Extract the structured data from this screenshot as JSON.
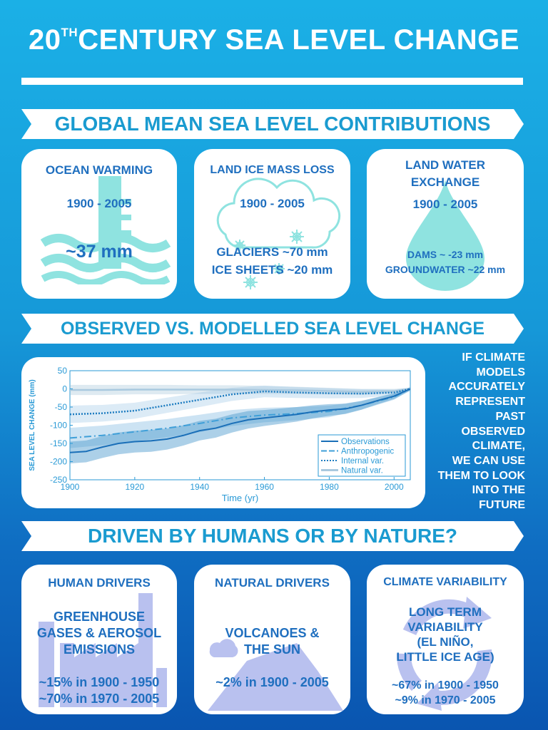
{
  "header": {
    "title_prefix": "20",
    "title_sup": "TH",
    "title_main": "CENTURY SEA LEVEL CHANGE"
  },
  "sections": {
    "contributions": "GLOBAL MEAN SEA LEVEL CONTRIBUTIONS",
    "observed": "OBSERVED VS. MODELLED SEA LEVEL CHANGE",
    "drivers": "DRIVEN BY HUMANS OR BY NATURE?"
  },
  "cards_top": {
    "ocean": {
      "title": "OCEAN WARMING",
      "period": "1900 - 2005",
      "value": "~37 mm"
    },
    "land_ice": {
      "title": "LAND ICE MASS LOSS",
      "period": "1900 - 2005",
      "line1": "GLACIERS ~70 mm",
      "line2": "ICE SHEETS ~20 mm"
    },
    "land_water": {
      "title_line1": "LAND WATER",
      "title_line2": "EXCHANGE",
      "period": "1900 - 2005",
      "line1": "DAMS ~ -23 mm",
      "line2": "GROUNDWATER ~22 mm"
    }
  },
  "side_text": [
    "IF CLIMATE",
    "MODELS",
    "ACCURATELY",
    "REPRESENT",
    "PAST",
    "OBSERVED",
    "CLIMATE,",
    "WE CAN USE",
    "THEM TO LOOK",
    "INTO THE",
    "FUTURE"
  ],
  "cards_bottom": {
    "human": {
      "title": "HUMAN DRIVERS",
      "body1": "GREENHOUSE",
      "body2": "GASES & AEROSOL",
      "body3": "EMISSIONS",
      "stat1": "~15% in 1900 - 1950",
      "stat2": "~70% in 1970 - 2005"
    },
    "natural": {
      "title": "NATURAL DRIVERS",
      "body1": "VOLCANOES &",
      "body2": "THE SUN",
      "stat1": "~2% in 1900 - 2005"
    },
    "variability": {
      "title": "CLIMATE VARIABILITY",
      "body1": "LONG TERM",
      "body2": "VARIABILITY",
      "body3": "(EL NIÑO,",
      "body4": "LITTLE ICE AGE)",
      "stat1": "~67% in 1900 - 1950",
      "stat2": "~9% in 1970 - 2005"
    }
  },
  "colors": {
    "accent": "#1a9bd0",
    "text_blue": "#1f6fbf",
    "icon_cyan": "#8fe3e0",
    "icon_lavender": "#b9c1ef"
  },
  "chart_data": {
    "type": "line",
    "title": "",
    "xlabel": "Time (yr)",
    "ylabel": "SEA LEVEL CHANGE (mm)",
    "xlim": [
      1900,
      2005
    ],
    "ylim": [
      -250,
      50
    ],
    "xticks": [
      1900,
      1920,
      1940,
      1960,
      1980,
      2000
    ],
    "yticks": [
      50,
      0,
      -50,
      -100,
      -150,
      -200,
      -250
    ],
    "legend_position": "bottom-right",
    "series": [
      {
        "name": "Observations",
        "style": "solid",
        "x": [
          1900,
          1905,
          1910,
          1915,
          1920,
          1925,
          1930,
          1935,
          1940,
          1945,
          1950,
          1955,
          1960,
          1965,
          1970,
          1975,
          1980,
          1985,
          1990,
          1995,
          2000,
          2005
        ],
        "y": [
          -175,
          -172,
          -160,
          -150,
          -145,
          -143,
          -138,
          -128,
          -115,
          -108,
          -95,
          -85,
          -80,
          -75,
          -70,
          -63,
          -58,
          -55,
          -45,
          -32,
          -20,
          0
        ],
        "band": [
          30,
          30,
          30,
          30,
          30,
          30,
          29,
          28,
          27,
          26,
          25,
          24,
          22,
          21,
          20,
          18,
          16,
          14,
          12,
          10,
          8,
          5
        ]
      },
      {
        "name": "Anthropogenic",
        "style": "dashdot",
        "x": [
          1900,
          1910,
          1920,
          1930,
          1940,
          1950,
          1960,
          1970,
          1980,
          1990,
          2000,
          2005
        ],
        "y": [
          -135,
          -128,
          -118,
          -108,
          -95,
          -80,
          -72,
          -68,
          -62,
          -45,
          -22,
          0
        ],
        "band": [
          28,
          27,
          26,
          25,
          24,
          22,
          20,
          18,
          16,
          12,
          8,
          4
        ]
      },
      {
        "name": "Internal var.",
        "style": "dotted",
        "x": [
          1900,
          1910,
          1920,
          1930,
          1940,
          1950,
          1960,
          1970,
          1980,
          1990,
          2000,
          2005
        ],
        "y": [
          -70,
          -67,
          -60,
          -45,
          -30,
          -15,
          -7,
          -10,
          -12,
          -13,
          -10,
          0
        ],
        "band": [
          24,
          23,
          22,
          21,
          20,
          18,
          16,
          15,
          14,
          12,
          8,
          4
        ]
      },
      {
        "name": "Natural var.",
        "style": "solid-light",
        "x": [
          1900,
          1910,
          1920,
          1930,
          1940,
          1950,
          1960,
          1970,
          1980,
          1990,
          2000,
          2005
        ],
        "y": [
          -3,
          -3,
          -2,
          -2,
          -2,
          -2,
          -3,
          -4,
          -6,
          -8,
          -6,
          0
        ],
        "band": [
          14,
          14,
          13,
          13,
          12,
          12,
          11,
          10,
          9,
          8,
          6,
          3
        ]
      }
    ]
  }
}
